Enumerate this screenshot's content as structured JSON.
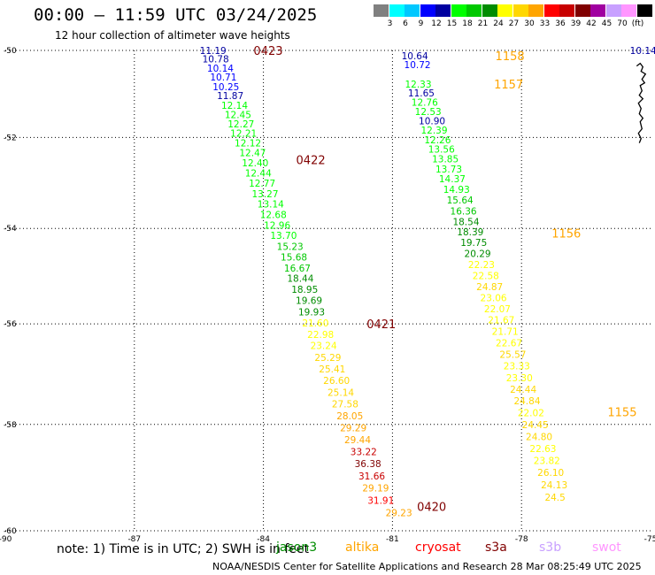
{
  "title": "00:00 — 11:59 UTC 03/24/2025",
  "subtitle": "12 hour collection of altimeter wave heights",
  "colorbar": {
    "swatches": [
      {
        "color": "#808080",
        "label": ""
      },
      {
        "color": "#00ffff",
        "label": "3"
      },
      {
        "color": "#00c8ff",
        "label": "6"
      },
      {
        "color": "#0000ff",
        "label": "9"
      },
      {
        "color": "#0000a0",
        "label": "12"
      },
      {
        "color": "#00ff00",
        "label": "15"
      },
      {
        "color": "#00c800",
        "label": "18"
      },
      {
        "color": "#008c00",
        "label": "21"
      },
      {
        "color": "#ffff00",
        "label": "24"
      },
      {
        "color": "#ffd700",
        "label": "27"
      },
      {
        "color": "#ffa500",
        "label": "30"
      },
      {
        "color": "#ff0000",
        "label": "33"
      },
      {
        "color": "#c80000",
        "label": "36"
      },
      {
        "color": "#800000",
        "label": "39"
      },
      {
        "color": "#a000a0",
        "label": "42"
      },
      {
        "color": "#c8a0ff",
        "label": "45"
      },
      {
        "color": "#ff96ff",
        "label": "70"
      },
      {
        "color": "#000000",
        "label": "(ft)"
      }
    ]
  },
  "chart_data": {
    "type": "scatter",
    "x_ticks": [
      "-90",
      "-87",
      "-84",
      "-81",
      "-78",
      "-75"
    ],
    "y_ticks": [
      "-50",
      "-52",
      "-54",
      "-56",
      "-58",
      "-60"
    ],
    "xlim": [
      -90,
      -75
    ],
    "ylim": [
      -60,
      -50
    ],
    "grid": true,
    "pass_labels": [
      {
        "label": "0423",
        "lon": -84.23,
        "lat": -50.0,
        "color": "#800000"
      },
      {
        "label": "0422",
        "lon": -83.24,
        "lat": -52.5,
        "color": "#800000"
      },
      {
        "label": "0421",
        "lon": -81.6,
        "lat": -56.0,
        "color": "#800000"
      },
      {
        "label": "0420",
        "lon": -80.43,
        "lat": -59.55,
        "color": "#800000"
      },
      {
        "label": "1158",
        "lon": -78.61,
        "lat": -50.12,
        "color": "#ffa500"
      },
      {
        "label": "1157",
        "lon": -78.64,
        "lat": -50.78,
        "color": "#ffa500"
      },
      {
        "label": "1156",
        "lon": -77.3,
        "lat": -54.1,
        "color": "#ffa500"
      },
      {
        "label": "1155",
        "lon": -76.0,
        "lat": -57.75,
        "color": "#ffa500"
      }
    ],
    "tracks": [
      {
        "points": [
          {
            "lon": -85.48,
            "lat": -50.0,
            "swh": "11.19",
            "color": "#0000a0"
          },
          {
            "lon": -85.42,
            "lat": -50.2,
            "swh": "10.78",
            "color": "#0000a0"
          },
          {
            "lon": -85.31,
            "lat": -50.41,
            "swh": "10.14",
            "color": "#0000ff"
          },
          {
            "lon": -85.24,
            "lat": -50.62,
            "swh": "10.71",
            "color": "#0000ff"
          },
          {
            "lon": -85.18,
            "lat": -50.84,
            "swh": "10.25",
            "color": "#0000ff"
          },
          {
            "lon": -85.08,
            "lat": -51.05,
            "swh": "11.87",
            "color": "#0000a0"
          },
          {
            "lon": -84.98,
            "lat": -51.27,
            "swh": "12.14",
            "color": "#00ff00"
          },
          {
            "lon": -84.9,
            "lat": -51.48,
            "swh": "12.45",
            "color": "#00ff00"
          },
          {
            "lon": -84.83,
            "lat": -51.69,
            "swh": "12.27",
            "color": "#00ff00"
          },
          {
            "lon": -84.77,
            "lat": -51.9,
            "swh": "12.21",
            "color": "#00ff00"
          },
          {
            "lon": -84.67,
            "lat": -52.12,
            "swh": "12.12",
            "color": "#00ff00"
          },
          {
            "lon": -84.56,
            "lat": -52.34,
            "swh": "12.47",
            "color": "#00ff00"
          },
          {
            "lon": -84.5,
            "lat": -52.57,
            "swh": "12.40",
            "color": "#00ff00"
          },
          {
            "lon": -84.43,
            "lat": -52.79,
            "swh": "12.44",
            "color": "#00ff00"
          },
          {
            "lon": -84.34,
            "lat": -53.02,
            "swh": "12.77",
            "color": "#00ff00"
          },
          {
            "lon": -84.27,
            "lat": -53.25,
            "swh": "13.27",
            "color": "#00ff00"
          },
          {
            "lon": -84.14,
            "lat": -53.47,
            "swh": "13.14",
            "color": "#00ff00"
          },
          {
            "lon": -84.08,
            "lat": -53.7,
            "swh": "12.68",
            "color": "#00ff00"
          },
          {
            "lon": -83.99,
            "lat": -53.93,
            "swh": "12.96",
            "color": "#00ff00"
          },
          {
            "lon": -83.84,
            "lat": -54.15,
            "swh": "13.70",
            "color": "#00ff00"
          },
          {
            "lon": -83.69,
            "lat": -54.38,
            "swh": "15.23",
            "color": "#00c800"
          },
          {
            "lon": -83.6,
            "lat": -54.61,
            "swh": "15.68",
            "color": "#00c800"
          },
          {
            "lon": -83.52,
            "lat": -54.84,
            "swh": "16.67",
            "color": "#00c800"
          },
          {
            "lon": -83.45,
            "lat": -55.06,
            "swh": "18.44",
            "color": "#008c00"
          },
          {
            "lon": -83.35,
            "lat": -55.29,
            "swh": "18.95",
            "color": "#008c00"
          },
          {
            "lon": -83.25,
            "lat": -55.52,
            "swh": "19.69",
            "color": "#008c00"
          },
          {
            "lon": -83.19,
            "lat": -55.75,
            "swh": "19.93",
            "color": "#008c00"
          },
          {
            "lon": -83.1,
            "lat": -55.98,
            "swh": "21.60",
            "color": "#ffff00"
          },
          {
            "lon": -82.98,
            "lat": -56.21,
            "swh": "22.98",
            "color": "#ffff00"
          },
          {
            "lon": -82.91,
            "lat": -56.44,
            "swh": "23.24",
            "color": "#ffff00"
          },
          {
            "lon": -82.81,
            "lat": -56.68,
            "swh": "25.29",
            "color": "#ffd700"
          },
          {
            "lon": -82.71,
            "lat": -56.91,
            "swh": "25.41",
            "color": "#ffd700"
          },
          {
            "lon": -82.61,
            "lat": -57.14,
            "swh": "26.60",
            "color": "#ffd700"
          },
          {
            "lon": -82.51,
            "lat": -57.37,
            "swh": "25.14",
            "color": "#ffd700"
          },
          {
            "lon": -82.41,
            "lat": -57.6,
            "swh": "27.58",
            "color": "#ffd700"
          },
          {
            "lon": -82.3,
            "lat": -57.83,
            "swh": "28.05",
            "color": "#ffa500"
          },
          {
            "lon": -82.22,
            "lat": -58.06,
            "swh": "29.29",
            "color": "#ffa500"
          },
          {
            "lon": -82.12,
            "lat": -58.29,
            "swh": "29.44",
            "color": "#ffa500"
          },
          {
            "lon": -81.98,
            "lat": -58.52,
            "swh": "33.22",
            "color": "#c80000"
          },
          {
            "lon": -81.88,
            "lat": -58.75,
            "swh": "36.38",
            "color": "#800000"
          },
          {
            "lon": -81.79,
            "lat": -58.98,
            "swh": "31.66",
            "color": "#c80000"
          },
          {
            "lon": -81.7,
            "lat": -59.21,
            "swh": "29.19",
            "color": "#ffa500"
          },
          {
            "lon": -81.58,
            "lat": -59.44,
            "swh": "31.91",
            "color": "#ff0000"
          },
          {
            "lon": -81.16,
            "lat": -59.67,
            "swh": "29.23",
            "color": "#ffa500"
          }
        ]
      },
      {
        "points": [
          {
            "lon": -80.79,
            "lat": -50.12,
            "swh": "10.64",
            "color": "#0000a0"
          },
          {
            "lon": -80.73,
            "lat": -50.33,
            "swh": "10.72",
            "color": "#0000ff"
          },
          {
            "lon": -80.71,
            "lat": -50.78,
            "swh": "12.33",
            "color": "#00ff00"
          },
          {
            "lon": -80.64,
            "lat": -50.99,
            "swh": "11.65",
            "color": "#0000a0"
          },
          {
            "lon": -80.56,
            "lat": -51.2,
            "swh": "12.76",
            "color": "#00ff00"
          },
          {
            "lon": -80.48,
            "lat": -51.41,
            "swh": "12.53",
            "color": "#00ff00"
          },
          {
            "lon": -80.39,
            "lat": -51.62,
            "swh": "10.90",
            "color": "#0000a0"
          },
          {
            "lon": -80.34,
            "lat": -51.83,
            "swh": "12.39",
            "color": "#00ff00"
          },
          {
            "lon": -80.26,
            "lat": -52.05,
            "swh": "12.26",
            "color": "#00ff00"
          },
          {
            "lon": -80.17,
            "lat": -52.26,
            "swh": "13.56",
            "color": "#00ff00"
          },
          {
            "lon": -80.08,
            "lat": -52.48,
            "swh": "13.85",
            "color": "#00ff00"
          },
          {
            "lon": -80.0,
            "lat": -52.7,
            "swh": "13.73",
            "color": "#00ff00"
          },
          {
            "lon": -79.92,
            "lat": -52.92,
            "swh": "14.37",
            "color": "#00ff00"
          },
          {
            "lon": -79.82,
            "lat": -53.15,
            "swh": "14.93",
            "color": "#00ff00"
          },
          {
            "lon": -79.74,
            "lat": -53.38,
            "swh": "15.64",
            "color": "#00c800"
          },
          {
            "lon": -79.66,
            "lat": -53.62,
            "swh": "16.36",
            "color": "#00c800"
          },
          {
            "lon": -79.6,
            "lat": -53.85,
            "swh": "18.54",
            "color": "#008c00"
          },
          {
            "lon": -79.5,
            "lat": -54.07,
            "swh": "18.39",
            "color": "#008c00"
          },
          {
            "lon": -79.42,
            "lat": -54.3,
            "swh": "19.75",
            "color": "#008c00"
          },
          {
            "lon": -79.33,
            "lat": -54.53,
            "swh": "20.29",
            "color": "#008c00"
          },
          {
            "lon": -79.24,
            "lat": -54.77,
            "swh": "22.23",
            "color": "#ffff00"
          },
          {
            "lon": -79.14,
            "lat": -55.0,
            "swh": "22.58",
            "color": "#ffff00"
          },
          {
            "lon": -79.05,
            "lat": -55.23,
            "swh": "24.87",
            "color": "#ffd700"
          },
          {
            "lon": -78.96,
            "lat": -55.46,
            "swh": "23.06",
            "color": "#ffff00"
          },
          {
            "lon": -78.87,
            "lat": -55.69,
            "swh": "22.07",
            "color": "#ffff00"
          },
          {
            "lon": -78.78,
            "lat": -55.92,
            "swh": "21.67",
            "color": "#ffff00"
          },
          {
            "lon": -78.69,
            "lat": -56.15,
            "swh": "21.71",
            "color": "#ffff00"
          },
          {
            "lon": -78.6,
            "lat": -56.38,
            "swh": "22.67",
            "color": "#ffff00"
          },
          {
            "lon": -78.51,
            "lat": -56.62,
            "swh": "25.57",
            "color": "#ffd700"
          },
          {
            "lon": -78.42,
            "lat": -56.85,
            "swh": "23.33",
            "color": "#ffff00"
          },
          {
            "lon": -78.36,
            "lat": -57.08,
            "swh": "23.30",
            "color": "#ffff00"
          },
          {
            "lon": -78.27,
            "lat": -57.31,
            "swh": "24.44",
            "color": "#ffd700"
          },
          {
            "lon": -78.18,
            "lat": -57.54,
            "swh": "24.84",
            "color": "#ffd700"
          },
          {
            "lon": -78.09,
            "lat": -57.77,
            "swh": "22.02",
            "color": "#ffff00"
          },
          {
            "lon": -77.99,
            "lat": -58.0,
            "swh": "24.45",
            "color": "#ffd700"
          },
          {
            "lon": -77.9,
            "lat": -58.23,
            "swh": "24.80",
            "color": "#ffd700"
          },
          {
            "lon": -77.81,
            "lat": -58.46,
            "swh": "22.63",
            "color": "#ffff00"
          },
          {
            "lon": -77.72,
            "lat": -58.69,
            "swh": "23.82",
            "color": "#ffff00"
          },
          {
            "lon": -77.63,
            "lat": -58.92,
            "swh": "26.10",
            "color": "#ffd700"
          },
          {
            "lon": -77.55,
            "lat": -59.15,
            "swh": "24.13",
            "color": "#ffd700"
          },
          {
            "lon": -77.46,
            "lat": -59.38,
            "swh": "24.5",
            "color": "#ffd700"
          }
        ]
      },
      {
        "points": [
          {
            "lon": -75.48,
            "lat": -50.0,
            "swh": "10.14",
            "color": "#0000a0"
          }
        ]
      }
    ]
  },
  "note": "note: 1) Time is in UTC; 2) SWH is in feet",
  "satellites": [
    {
      "name": "jason3",
      "color": "#008c00"
    },
    {
      "name": "altika",
      "color": "#ffa500"
    },
    {
      "name": "cryosat",
      "color": "#ff0000"
    },
    {
      "name": "s3a",
      "color": "#800000"
    },
    {
      "name": "s3b",
      "color": "#c8a0ff"
    },
    {
      "name": "swot",
      "color": "#ff96ff"
    }
  ],
  "credit": "NOAA/NESDIS Center for Satellite Applications and Research   28 Mar 08:25:49 UTC 2025"
}
